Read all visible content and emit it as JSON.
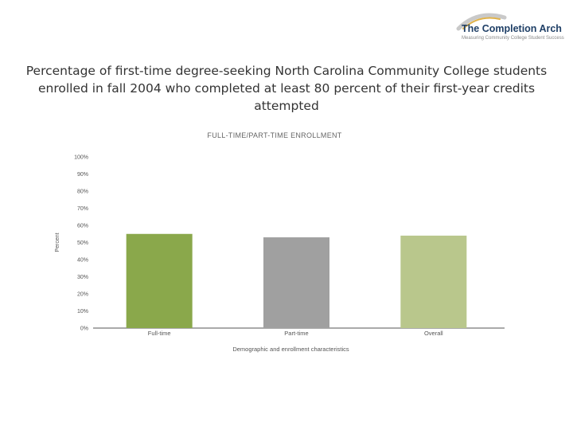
{
  "logo": {
    "name": "The Completion Arch",
    "tagline": "Measuring Community College Student Success",
    "colors": {
      "arch": "#c9c9c9",
      "arch_accent": "#e0b24a",
      "text": "#1f3f66"
    }
  },
  "title": "Percentage of first-time degree-seeking North Carolina Community College students enrolled in fall 2004 who completed at least 80 percent of their first-year credits attempted",
  "chart_data": {
    "type": "bar",
    "title": "FULL-TIME/PART-TIME ENROLLMENT",
    "categories": [
      "Full-time",
      "Part-time",
      "Overall"
    ],
    "values": [
      55,
      53,
      54
    ],
    "colors": [
      "#8aa84b",
      "#a0a0a0",
      "#b9c78c"
    ],
    "xlabel": "Demographic and enrollment characteristics",
    "ylabel": "Percent",
    "ylim": [
      0,
      100
    ],
    "yticks": [
      "0%",
      "10%",
      "20%",
      "30%",
      "40%",
      "50%",
      "60%",
      "70%",
      "80%",
      "90%",
      "100%"
    ],
    "grid": false,
    "legend": "none"
  }
}
